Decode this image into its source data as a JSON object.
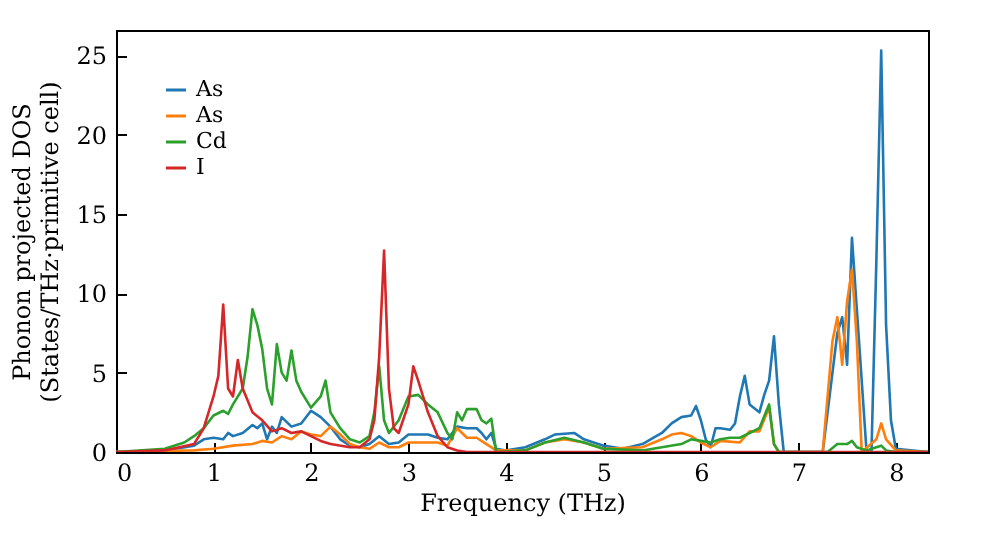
{
  "chart_data": {
    "type": "line",
    "xlabel": "Frequency (THz)",
    "ylabel": "Phonon projected DOS\n(States/THz·primitive cell)",
    "xlim": [
      0,
      8.33
    ],
    "ylim": [
      0,
      26.6
    ],
    "xticks": [
      0,
      1,
      2,
      3,
      4,
      5,
      6,
      7,
      8
    ],
    "yticks": [
      0,
      5,
      10,
      15,
      20,
      25
    ],
    "grid": false,
    "legend": "top left",
    "series": [
      {
        "name": "As",
        "color": "#1f77b4",
        "x": [
          0,
          0.5,
          0.8,
          0.9,
          1.0,
          1.1,
          1.15,
          1.2,
          1.3,
          1.4,
          1.45,
          1.5,
          1.55,
          1.6,
          1.65,
          1.7,
          1.8,
          1.9,
          2.0,
          2.05,
          2.1,
          2.2,
          2.3,
          2.4,
          2.5,
          2.6,
          2.7,
          2.8,
          2.9,
          3.0,
          3.2,
          3.3,
          3.4,
          3.5,
          3.6,
          3.7,
          3.75,
          3.8,
          3.85,
          3.9,
          4.0,
          4.2,
          4.4,
          4.5,
          4.7,
          4.8,
          5.0,
          5.2,
          5.4,
          5.6,
          5.7,
          5.8,
          5.9,
          5.95,
          6.0,
          6.05,
          6.1,
          6.15,
          6.2,
          6.3,
          6.35,
          6.4,
          6.45,
          6.5,
          6.6,
          6.65,
          6.7,
          6.75,
          6.8,
          6.85,
          7.25,
          7.35,
          7.4,
          7.45,
          7.5,
          7.55,
          7.6,
          7.7,
          7.75,
          7.8,
          7.85,
          7.9,
          7.95,
          8.0,
          8.33
        ],
        "values": [
          0,
          0.1,
          0.4,
          0.8,
          0.9,
          0.8,
          1.2,
          1,
          1.2,
          1.7,
          1.5,
          1.8,
          0.8,
          1.6,
          1.2,
          2.2,
          1.6,
          1.8,
          2.6,
          2.4,
          2.2,
          1.6,
          0.8,
          0.4,
          0.3,
          0.5,
          1,
          0.5,
          0.6,
          1.1,
          1.1,
          0.9,
          0.8,
          1.6,
          1.5,
          1.5,
          1.2,
          0.8,
          1.2,
          0.2,
          0.1,
          0.3,
          0.8,
          1.1,
          1.2,
          0.8,
          0.4,
          0.2,
          0.5,
          1.2,
          1.8,
          2.2,
          2.3,
          2.9,
          2,
          0.8,
          0.3,
          1.5,
          1.5,
          1.4,
          1.8,
          3.5,
          4.8,
          3,
          2.5,
          3.6,
          4.5,
          7.3,
          3,
          0,
          0,
          5,
          7.5,
          8.5,
          5.5,
          13.5,
          9,
          0,
          0,
          12,
          25.3,
          8,
          2,
          0.2,
          0
        ]
      },
      {
        "name": "As",
        "color": "#ff7f0e",
        "x": [
          0,
          0.8,
          1.0,
          1.2,
          1.4,
          1.5,
          1.6,
          1.7,
          1.8,
          1.9,
          2.0,
          2.1,
          2.2,
          2.3,
          2.4,
          2.5,
          2.6,
          2.7,
          2.8,
          2.9,
          3.0,
          3.1,
          3.3,
          3.4,
          3.5,
          3.6,
          3.7,
          3.8,
          3.9,
          4.2,
          4.4,
          4.6,
          4.8,
          5.0,
          5.4,
          5.6,
          5.7,
          5.8,
          5.9,
          6.0,
          6.1,
          6.2,
          6.4,
          6.5,
          6.6,
          6.7,
          6.75,
          6.8,
          7.25,
          7.35,
          7.4,
          7.45,
          7.5,
          7.55,
          7.6,
          7.65,
          7.8,
          7.85,
          7.9,
          8.0,
          8.33
        ],
        "values": [
          0,
          0.1,
          0.2,
          0.4,
          0.5,
          0.7,
          0.6,
          1,
          0.8,
          1.3,
          1.1,
          1,
          1.6,
          1.1,
          0.5,
          0.3,
          0.2,
          0.6,
          0.3,
          0.3,
          0.6,
          0.6,
          0.6,
          0.4,
          1.5,
          0.9,
          0.9,
          0.5,
          0.1,
          0.1,
          0.6,
          0.8,
          0.6,
          0.2,
          0.3,
          0.8,
          1.1,
          1.2,
          1,
          0.6,
          0.3,
          0.7,
          0.6,
          1.3,
          1.3,
          2.8,
          0.5,
          0,
          0,
          7,
          8.5,
          5.5,
          9.5,
          11.5,
          7,
          0,
          0.8,
          1.8,
          0.8,
          0.1,
          0
        ]
      },
      {
        "name": "Cd",
        "color": "#2ca02c",
        "x": [
          0,
          0.5,
          0.7,
          0.8,
          0.9,
          1.0,
          1.1,
          1.15,
          1.2,
          1.3,
          1.35,
          1.4,
          1.45,
          1.5,
          1.55,
          1.6,
          1.65,
          1.7,
          1.75,
          1.8,
          1.85,
          1.9,
          2.0,
          2.1,
          2.15,
          2.2,
          2.3,
          2.4,
          2.5,
          2.6,
          2.65,
          2.7,
          2.75,
          2.8,
          2.9,
          3.0,
          3.1,
          3.2,
          3.3,
          3.4,
          3.45,
          3.5,
          3.55,
          3.6,
          3.7,
          3.75,
          3.8,
          3.85,
          3.9,
          4.2,
          4.4,
          4.6,
          4.8,
          5.0,
          5.4,
          5.8,
          5.9,
          6.0,
          6.1,
          6.2,
          6.3,
          6.4,
          6.5,
          6.6,
          6.7,
          6.75,
          6.8,
          7.3,
          7.4,
          7.5,
          7.55,
          7.6,
          7.7,
          7.8,
          7.85,
          7.9,
          8.0,
          8.33
        ],
        "values": [
          0,
          0.2,
          0.6,
          1,
          1.5,
          2.3,
          2.6,
          2.4,
          3,
          4,
          6,
          9,
          8,
          6.5,
          4,
          3,
          6.8,
          5,
          4.5,
          6.4,
          4.5,
          3.8,
          2.8,
          3.5,
          4.5,
          2.5,
          1.5,
          0.8,
          0.6,
          1,
          2.5,
          5.4,
          2,
          1.2,
          2,
          3.5,
          3.6,
          3,
          2.5,
          1.2,
          0.8,
          2.5,
          2,
          2.7,
          2.7,
          2,
          1.8,
          2.1,
          0,
          0.1,
          0.6,
          0.9,
          0.6,
          0.2,
          0.1,
          0.5,
          0.8,
          0.7,
          0.6,
          0.8,
          0.9,
          0.9,
          1.2,
          1.5,
          3,
          0.5,
          0,
          0,
          0.5,
          0.5,
          0.7,
          0.3,
          0.1,
          0.3,
          0.4,
          0.1,
          0,
          0
        ]
      },
      {
        "name": "I",
        "color": "#d62728",
        "x": [
          0,
          0.5,
          0.8,
          0.9,
          1.0,
          1.05,
          1.1,
          1.15,
          1.2,
          1.25,
          1.3,
          1.4,
          1.5,
          1.6,
          1.7,
          1.8,
          1.9,
          2.0,
          2.1,
          2.2,
          2.4,
          2.5,
          2.6,
          2.65,
          2.7,
          2.75,
          2.8,
          2.85,
          2.9,
          3.0,
          3.05,
          3.1,
          3.2,
          3.3,
          3.4,
          3.5,
          3.6,
          8.33
        ],
        "values": [
          0,
          0.1,
          0.5,
          1.5,
          3.5,
          4.8,
          9.3,
          4,
          3.5,
          5.8,
          4,
          2.5,
          2,
          1.3,
          1.5,
          1.2,
          1.3,
          1,
          0.7,
          0.5,
          0.3,
          0.3,
          0.8,
          2,
          6,
          12.7,
          4,
          1.5,
          1.2,
          3,
          5.4,
          4.5,
          2.5,
          1,
          0.3,
          0.1,
          0,
          0
        ]
      }
    ]
  }
}
